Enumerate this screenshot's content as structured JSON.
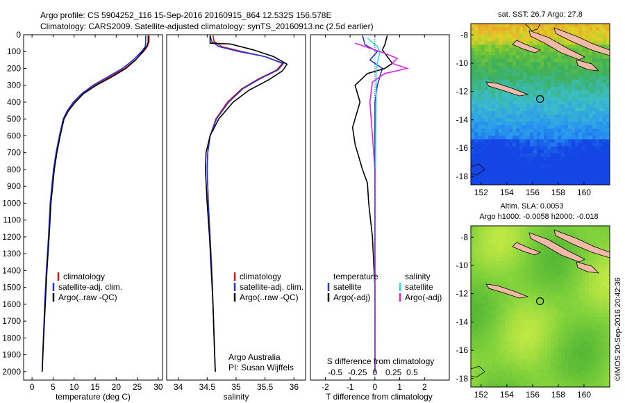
{
  "header": {
    "line1": "Argo profile: CS 5904252_116 15-Sep-2016 20160915_864 12.532S 156.578E",
    "line2": "Climatology: CARS2009. Satellite-adjusted climatology: synTS_20160913.nc (2.5d earlier)"
  },
  "credit": {
    "org": "Argo Australia",
    "pi": "PI: Susan Wijffels",
    "imos": "©IMOS 20-Sep-2016 20:42:36"
  },
  "colors": {
    "climatology": "#dd1111",
    "satellite": "#1f33e0",
    "argo": "#000000",
    "sat_salinity": "#22e0f0",
    "argo_salinity": "#e31fe0"
  },
  "chart_data": [
    {
      "id": "temperature",
      "type": "line",
      "xlabel": "temperature (deg C)",
      "ylabel": "",
      "xlim": [
        -2,
        31
      ],
      "ylim": [
        2050,
        0
      ],
      "xticks": [
        "0",
        "5",
        "10",
        "15",
        "20",
        "25",
        "30"
      ],
      "xtick_values": [
        0,
        5,
        10,
        15,
        20,
        25,
        30
      ],
      "yticks": [
        "0",
        "100",
        "200",
        "300",
        "400",
        "500",
        "600",
        "700",
        "800",
        "900",
        "1000",
        "1100",
        "1200",
        "1300",
        "1400",
        "1500",
        "1600",
        "1700",
        "1800",
        "1900",
        "2000"
      ],
      "ytick_values": [
        0,
        100,
        200,
        300,
        400,
        500,
        600,
        700,
        800,
        900,
        1000,
        1100,
        1200,
        1300,
        1400,
        1500,
        1600,
        1700,
        1800,
        1900,
        2000
      ],
      "legend": [
        "climatology",
        "satellite-adj. clim.",
        "Argo(..raw -QC)"
      ],
      "series": [
        {
          "name": "climatology",
          "color": "#dd1111",
          "points": [
            [
              27.8,
              5
            ],
            [
              27.8,
              40
            ],
            [
              27.4,
              70
            ],
            [
              26.5,
              100
            ],
            [
              24.5,
              150
            ],
            [
              22,
              200
            ],
            [
              18.5,
              250
            ],
            [
              15,
              300
            ],
            [
              12,
              350
            ],
            [
              10,
              400
            ],
            [
              8.5,
              450
            ],
            [
              7.5,
              500
            ],
            [
              6.6,
              600
            ],
            [
              5.8,
              700
            ],
            [
              5.2,
              800
            ],
            [
              4.8,
              900
            ],
            [
              4.4,
              1000
            ],
            [
              4,
              1200
            ],
            [
              3.5,
              1400
            ],
            [
              3.1,
              1600
            ],
            [
              2.7,
              1800
            ],
            [
              2.4,
              2000
            ]
          ]
        },
        {
          "name": "satellite-adj. clim.",
          "color": "#1f33e0",
          "points": [
            [
              27,
              5
            ],
            [
              27,
              40
            ],
            [
              26.9,
              70
            ],
            [
              26,
              100
            ],
            [
              24,
              150
            ],
            [
              21.5,
              200
            ],
            [
              18,
              250
            ],
            [
              14.5,
              300
            ],
            [
              11.8,
              350
            ],
            [
              9.8,
              400
            ],
            [
              8.4,
              450
            ],
            [
              7.4,
              500
            ],
            [
              6.5,
              600
            ],
            [
              5.7,
              700
            ],
            [
              5.1,
              800
            ],
            [
              4.7,
              900
            ],
            [
              4.3,
              1000
            ],
            [
              3.9,
              1200
            ],
            [
              3.4,
              1400
            ],
            [
              3,
              1600
            ],
            [
              2.7,
              1800
            ],
            [
              2.4,
              2000
            ]
          ]
        },
        {
          "name": "Argo(..raw -QC)",
          "color": "#000000",
          "points": [
            [
              27.6,
              5
            ],
            [
              27.6,
              45
            ],
            [
              27.2,
              70
            ],
            [
              26.3,
              100
            ],
            [
              24.6,
              150
            ],
            [
              22.3,
              200
            ],
            [
              19,
              250
            ],
            [
              15.3,
              300
            ],
            [
              12.2,
              350
            ],
            [
              10.3,
              400
            ],
            [
              8.7,
              450
            ],
            [
              7.6,
              500
            ],
            [
              6.7,
              600
            ],
            [
              5.9,
              700
            ],
            [
              5.3,
              800
            ],
            [
              4.9,
              900
            ],
            [
              4.5,
              1000
            ],
            [
              4.05,
              1200
            ],
            [
              3.55,
              1400
            ],
            [
              3.15,
              1600
            ],
            [
              2.75,
              1800
            ],
            [
              2.4,
              2000
            ]
          ]
        }
      ]
    },
    {
      "id": "salinity",
      "type": "line",
      "xlabel": "salinity",
      "ylabel": "",
      "xlim": [
        33.8,
        36.2
      ],
      "ylim": [
        2050,
        0
      ],
      "xticks": [
        "34",
        "34.5",
        "35",
        "35.5",
        "36"
      ],
      "xtick_values": [
        34,
        34.5,
        35,
        35.5,
        36
      ],
      "legend": [
        "climatology",
        "satellite-adj. clim.",
        "Argo(..raw -QC)"
      ],
      "series": [
        {
          "name": "climatology",
          "color": "#dd1111",
          "points": [
            [
              34.6,
              5
            ],
            [
              34.62,
              40
            ],
            [
              34.75,
              70
            ],
            [
              35.1,
              100
            ],
            [
              35.5,
              130
            ],
            [
              35.8,
              170
            ],
            [
              35.7,
              210
            ],
            [
              35.4,
              260
            ],
            [
              35.1,
              320
            ],
            [
              34.85,
              400
            ],
            [
              34.65,
              500
            ],
            [
              34.55,
              600
            ],
            [
              34.51,
              700
            ],
            [
              34.5,
              800
            ],
            [
              34.52,
              1000
            ],
            [
              34.55,
              1200
            ],
            [
              34.58,
              1400
            ],
            [
              34.6,
              1600
            ],
            [
              34.62,
              1800
            ],
            [
              34.64,
              2000
            ]
          ]
        },
        {
          "name": "satellite-adj. clim.",
          "color": "#1f33e0",
          "points": [
            [
              34.55,
              5
            ],
            [
              34.58,
              40
            ],
            [
              34.7,
              70
            ],
            [
              35.05,
              100
            ],
            [
              35.5,
              130
            ],
            [
              35.82,
              170
            ],
            [
              35.72,
              210
            ],
            [
              35.42,
              260
            ],
            [
              35.12,
              320
            ],
            [
              34.87,
              400
            ],
            [
              34.66,
              500
            ],
            [
              34.55,
              600
            ],
            [
              34.51,
              700
            ],
            [
              34.5,
              800
            ],
            [
              34.52,
              1000
            ],
            [
              34.55,
              1200
            ],
            [
              34.58,
              1400
            ],
            [
              34.6,
              1600
            ],
            [
              34.62,
              1800
            ],
            [
              34.64,
              2000
            ]
          ]
        },
        {
          "name": "Argo(..raw -QC)",
          "color": "#000000",
          "points": [
            [
              34.55,
              5
            ],
            [
              34.55,
              50
            ],
            [
              34.9,
              55
            ],
            [
              35.3,
              90
            ],
            [
              35.65,
              130
            ],
            [
              35.88,
              175
            ],
            [
              35.8,
              215
            ],
            [
              35.55,
              270
            ],
            [
              35.22,
              330
            ],
            [
              34.95,
              400
            ],
            [
              34.7,
              500
            ],
            [
              34.55,
              600
            ],
            [
              34.48,
              700
            ],
            [
              34.47,
              800
            ],
            [
              34.5,
              1000
            ],
            [
              34.54,
              1200
            ],
            [
              34.57,
              1400
            ],
            [
              34.6,
              1600
            ],
            [
              34.62,
              1800
            ],
            [
              34.64,
              2000
            ]
          ]
        }
      ]
    },
    {
      "id": "difference",
      "type": "line",
      "xlabel": "T difference from climatology",
      "title": "S difference from climatology",
      "xlim": [
        -2.6,
        3
      ],
      "ylim": [
        2050,
        0
      ],
      "xticks": [
        "-2",
        "-1",
        "0",
        "1",
        "2"
      ],
      "xtick_values": [
        -2,
        -1,
        0,
        1,
        2
      ],
      "top_ticks": [
        "-0.5",
        "-0.25",
        "0",
        "0.25",
        "0.5"
      ],
      "legend_left_title": "temperature",
      "legend_right_title": "salinity",
      "legend": [
        "satellite",
        "Argo(-adj)",
        "satellite",
        "Argo(-adj)"
      ],
      "series": [
        {
          "name": "T satellite",
          "color": "#1f33e0",
          "points": [
            [
              -0.5,
              5
            ],
            [
              -0.4,
              60
            ],
            [
              0.1,
              100
            ],
            [
              -0.2,
              150
            ],
            [
              0.3,
              200
            ],
            [
              0.1,
              300
            ],
            [
              0,
              400
            ],
            [
              0,
              600
            ],
            [
              0,
              1000
            ],
            [
              0,
              1500
            ],
            [
              0,
              2000
            ]
          ]
        },
        {
          "name": "T Argo(-adj)",
          "color": "#000000",
          "points": [
            [
              0.5,
              5
            ],
            [
              0.4,
              60
            ],
            [
              0.3,
              90
            ],
            [
              0.7,
              170
            ],
            [
              0.4,
              200
            ],
            [
              -0.3,
              230
            ],
            [
              -0.8,
              300
            ],
            [
              -0.6,
              400
            ],
            [
              -0.9,
              550
            ],
            [
              -0.8,
              650
            ],
            [
              -0.5,
              800
            ],
            [
              -0.3,
              880
            ],
            [
              -0.25,
              1000
            ],
            [
              -0.1,
              1200
            ],
            [
              0,
              1500
            ],
            [
              0,
              2000
            ]
          ]
        },
        {
          "name": "S satellite",
          "color": "#22e0f0",
          "points": [
            [
              -0.3,
              20
            ],
            [
              0.1,
              70
            ],
            [
              0.2,
              100
            ],
            [
              0.05,
              200
            ],
            [
              0.05,
              400
            ],
            [
              0.02,
              800
            ],
            [
              0,
              1400
            ],
            [
              0,
              2000
            ]
          ]
        },
        {
          "name": "S Argo(-adj)",
          "color": "#e31fe0",
          "points": [
            [
              -0.8,
              50
            ],
            [
              0.4,
              110
            ],
            [
              0.9,
              140
            ],
            [
              0.7,
              170
            ],
            [
              1.3,
              200
            ],
            [
              0.4,
              230
            ],
            [
              -0.1,
              280
            ],
            [
              -0.2,
              400
            ],
            [
              -0.1,
              600
            ],
            [
              0,
              800
            ],
            [
              0,
              1400
            ],
            [
              0,
              2000
            ]
          ]
        }
      ]
    },
    {
      "id": "sst_map",
      "type": "heatmap",
      "title": "sat. SST: 26.7 Argo: 27.8",
      "xticks": [
        "152",
        "154",
        "156",
        "158",
        "160"
      ],
      "xtick_values": [
        152,
        154,
        156,
        158,
        160
      ],
      "yticks": [
        "-8",
        "-10",
        "-12",
        "-14",
        "-16",
        "-18"
      ],
      "ytick_values": [
        -8,
        -10,
        -12,
        -14,
        -16,
        -18
      ],
      "xlim": [
        151.2,
        162
      ],
      "ylim": [
        -18.6,
        -7.2
      ],
      "marker": [
        156.58,
        -12.53
      ]
    },
    {
      "id": "sla_map",
      "type": "heatmap",
      "title": "Altim. SLA: 0.0053",
      "subtitle": "Argo h1000: -0.0058 h2000: -0.018",
      "xticks": [
        "152",
        "154",
        "156",
        "158",
        "160"
      ],
      "xtick_values": [
        152,
        154,
        156,
        158,
        160
      ],
      "yticks": [
        "-8",
        "-10",
        "-12",
        "-14",
        "-16",
        "-18"
      ],
      "ytick_values": [
        -8,
        -10,
        -12,
        -14,
        -16,
        -18
      ],
      "xlim": [
        151.2,
        162
      ],
      "ylim": [
        -18.6,
        -7.2
      ],
      "marker": [
        156.58,
        -12.53
      ]
    }
  ]
}
